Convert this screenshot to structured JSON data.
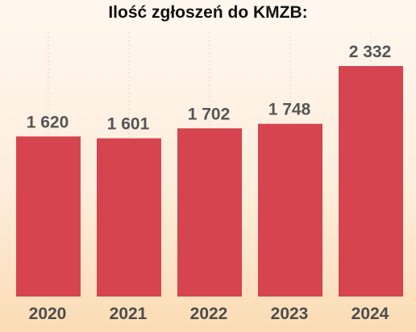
{
  "chart_data": {
    "type": "bar",
    "title": "Ilość zgłoszeń do KMZB:",
    "categories": [
      "2020",
      "2021",
      "2022",
      "2023",
      "2024"
    ],
    "values": [
      1620,
      1601,
      1702,
      1748,
      2332
    ],
    "value_labels": [
      "1 620",
      "1 601",
      "1 702",
      "1 748",
      "2 332"
    ],
    "xlabel": "",
    "ylabel": "",
    "ylim": [
      0,
      2400
    ],
    "grid": "vertical dotted",
    "legend": "none",
    "bar_color": "#d6444f",
    "grid_color": "#bdbdbd"
  }
}
